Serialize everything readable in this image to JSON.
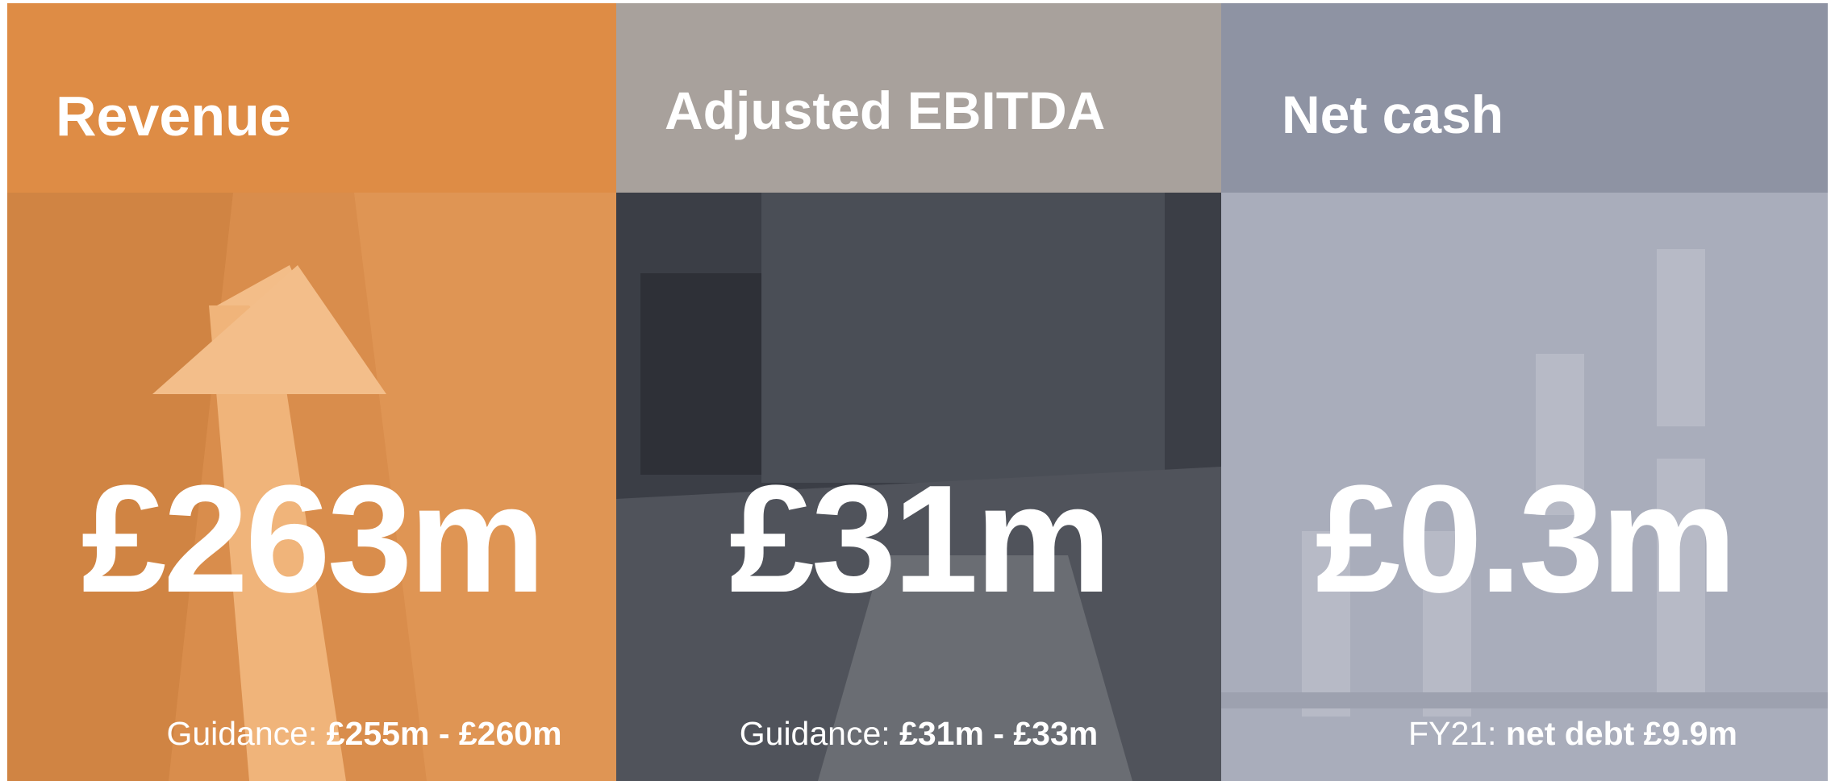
{
  "panels": [
    {
      "title": "Revenue",
      "value": "£263m",
      "note_label": "Guidance:",
      "note_value": "£255m - £260m"
    },
    {
      "title": "Adjusted EBITDA",
      "value": "£31m",
      "note_label": "Guidance:",
      "note_value": "£31m - £33m"
    },
    {
      "title": "Net cash",
      "value": "£0.3m",
      "note_label": "FY21:",
      "note_value": "net debt £9.9m"
    }
  ]
}
